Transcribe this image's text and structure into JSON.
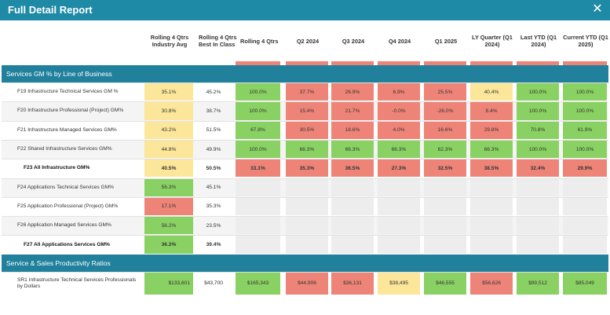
{
  "window": {
    "title": "Full Detail Report",
    "close_icon": "close-icon"
  },
  "columns": [
    {
      "label": "Rolling 4 Qtrs Industry Avg"
    },
    {
      "label": "Rolling 4 Qtrs Best In Class"
    },
    {
      "label": "Rolling 4 Qtrs"
    },
    {
      "label": "Q2 2024"
    },
    {
      "label": "Q3 2024"
    },
    {
      "label": "Q4 2024"
    },
    {
      "label": "Q1 2025"
    },
    {
      "label": "LY Quarter (Q1 2024)"
    },
    {
      "label": "Last YTD (Q1 2024)"
    },
    {
      "label": "Current YTD (Q1 2025)"
    }
  ],
  "colors": {
    "green": "#8ad163",
    "red": "#ee8478",
    "yellow": "#fce69a",
    "section": "#21819d",
    "title": "#1f8aa6"
  },
  "sections": [
    {
      "title": "Services GM % by Line of Business",
      "rows": [
        {
          "label": "F19 Infrastructure Technical Services GM %",
          "bold": false,
          "cells": [
            {
              "v": "35.1%",
              "c": "yellow"
            },
            {
              "v": "45.2%",
              "c": ""
            },
            {
              "v": "100.0%",
              "c": "green"
            },
            {
              "v": "37.7%",
              "c": "red"
            },
            {
              "v": "26.9%",
              "c": "red"
            },
            {
              "v": "6.9%",
              "c": "red"
            },
            {
              "v": "25.5%",
              "c": "red"
            },
            {
              "v": "40.4%",
              "c": "yellow"
            },
            {
              "v": "100.0%",
              "c": "green"
            },
            {
              "v": "100.0%",
              "c": "green"
            }
          ]
        },
        {
          "label": "F20 Infrastructure Professional (Project) GM%",
          "bold": false,
          "cells": [
            {
              "v": "30.8%",
              "c": "yellow"
            },
            {
              "v": "38.7%",
              "c": ""
            },
            {
              "v": "100.0%",
              "c": "green"
            },
            {
              "v": "15.4%",
              "c": "red"
            },
            {
              "v": "21.7%",
              "c": "red"
            },
            {
              "v": "-0.0%",
              "c": "red"
            },
            {
              "v": "-26.0%",
              "c": "red"
            },
            {
              "v": "8.4%",
              "c": "red"
            },
            {
              "v": "100.0%",
              "c": "green"
            },
            {
              "v": "100.0%",
              "c": "green"
            }
          ]
        },
        {
          "label": "F21 Infrastructure Managed Services GM%",
          "bold": false,
          "cells": [
            {
              "v": "43.2%",
              "c": "yellow"
            },
            {
              "v": "51.5%",
              "c": ""
            },
            {
              "v": "67.8%",
              "c": "green"
            },
            {
              "v": "30.5%",
              "c": "red"
            },
            {
              "v": "18.6%",
              "c": "red"
            },
            {
              "v": "4.0%",
              "c": "red"
            },
            {
              "v": "16.6%",
              "c": "red"
            },
            {
              "v": "29.8%",
              "c": "red"
            },
            {
              "v": "70.8%",
              "c": "green"
            },
            {
              "v": "61.9%",
              "c": "green"
            }
          ]
        },
        {
          "label": "F22 Shared Infrastructure Services GM%",
          "bold": false,
          "cells": [
            {
              "v": "44.8%",
              "c": "yellow"
            },
            {
              "v": "49.9%",
              "c": ""
            },
            {
              "v": "100.0%",
              "c": "green"
            },
            {
              "v": "66.3%",
              "c": "green"
            },
            {
              "v": "66.3%",
              "c": "green"
            },
            {
              "v": "66.3%",
              "c": "green"
            },
            {
              "v": "62.3%",
              "c": "green"
            },
            {
              "v": "66.3%",
              "c": "green"
            },
            {
              "v": "100.0%",
              "c": "green"
            },
            {
              "v": "100.0%",
              "c": "green"
            }
          ]
        },
        {
          "label": "F23 All Infrastructure GM%",
          "bold": true,
          "cells": [
            {
              "v": "40.5%",
              "c": "yellow"
            },
            {
              "v": "50.5%",
              "c": ""
            },
            {
              "v": "33.1%",
              "c": "red"
            },
            {
              "v": "35.3%",
              "c": "red"
            },
            {
              "v": "36.5%",
              "c": "red"
            },
            {
              "v": "27.3%",
              "c": "red"
            },
            {
              "v": "32.5%",
              "c": "red"
            },
            {
              "v": "38.5%",
              "c": "red"
            },
            {
              "v": "32.4%",
              "c": "red"
            },
            {
              "v": "29.9%",
              "c": "red"
            }
          ]
        },
        {
          "label": "F24 Applications Technical Services GM%",
          "bold": false,
          "cells": [
            {
              "v": "56.3%",
              "c": "green"
            },
            {
              "v": "45.1%",
              "c": ""
            },
            {
              "v": "",
              "c": "blank"
            },
            {
              "v": "",
              "c": "blank"
            },
            {
              "v": "",
              "c": "blank"
            },
            {
              "v": "",
              "c": "blank"
            },
            {
              "v": "",
              "c": "blank"
            },
            {
              "v": "",
              "c": "blank"
            },
            {
              "v": "",
              "c": "blank"
            },
            {
              "v": "",
              "c": "blank"
            }
          ]
        },
        {
          "label": "F25 Application Professional (Project) GM%",
          "bold": false,
          "cells": [
            {
              "v": "17.1%",
              "c": "red"
            },
            {
              "v": "35.3%",
              "c": ""
            },
            {
              "v": "",
              "c": "blank"
            },
            {
              "v": "",
              "c": "blank"
            },
            {
              "v": "",
              "c": "blank"
            },
            {
              "v": "",
              "c": "blank"
            },
            {
              "v": "",
              "c": "blank"
            },
            {
              "v": "",
              "c": "blank"
            },
            {
              "v": "",
              "c": "blank"
            },
            {
              "v": "",
              "c": "blank"
            }
          ]
        },
        {
          "label": "F26 Application Managed Services GM%",
          "bold": false,
          "cells": [
            {
              "v": "56.2%",
              "c": "green"
            },
            {
              "v": "23.5%",
              "c": ""
            },
            {
              "v": "",
              "c": "blank"
            },
            {
              "v": "",
              "c": "blank"
            },
            {
              "v": "",
              "c": "blank"
            },
            {
              "v": "",
              "c": "blank"
            },
            {
              "v": "",
              "c": "blank"
            },
            {
              "v": "",
              "c": "blank"
            },
            {
              "v": "",
              "c": "blank"
            },
            {
              "v": "",
              "c": "blank"
            }
          ]
        },
        {
          "label": "F27 All Applications Services GM%",
          "bold": true,
          "cells": [
            {
              "v": "36.2%",
              "c": "green"
            },
            {
              "v": "39.4%",
              "c": ""
            },
            {
              "v": "",
              "c": "blank"
            },
            {
              "v": "",
              "c": "blank"
            },
            {
              "v": "",
              "c": "blank"
            },
            {
              "v": "",
              "c": "blank"
            },
            {
              "v": "",
              "c": "blank"
            },
            {
              "v": "",
              "c": "blank"
            },
            {
              "v": "",
              "c": "blank"
            },
            {
              "v": "",
              "c": "blank"
            }
          ]
        }
      ]
    },
    {
      "title": "Service & Sales Productivity Ratios",
      "rows": [
        {
          "label": "SR1 Infrastructure Technical Services Professionals by Dollars",
          "bold": false,
          "cells": [
            {
              "v": "$133,601",
              "c": "green"
            },
            {
              "v": "$43,700",
              "c": ""
            },
            {
              "v": "$165,343",
              "c": "green"
            },
            {
              "v": "$44,906",
              "c": "red"
            },
            {
              "v": "$36,131",
              "c": "red"
            },
            {
              "v": "$38,495",
              "c": "yellow"
            },
            {
              "v": "$46,555",
              "c": "green"
            },
            {
              "v": "$56,626",
              "c": "red"
            },
            {
              "v": "$99,512",
              "c": "green"
            },
            {
              "v": "$85,049",
              "c": "green"
            }
          ]
        }
      ]
    }
  ]
}
